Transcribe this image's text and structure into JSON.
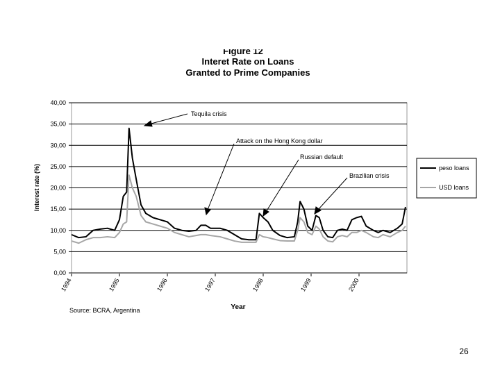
{
  "chart_data": {
    "type": "line",
    "figure_label": "Figure 12",
    "title": "Interet Rate on Loans",
    "subtitle": "Granted to Prime Companies",
    "xlabel": "Year",
    "ylabel": "Interest rate (%)",
    "source": "Source: BCRA, Argentina",
    "annotations": [
      "Tequila crisis",
      "Attack on the Hong Kong dollar",
      "Russian default",
      "Brazilian crisis"
    ],
    "x": [
      1994.0,
      1994.15,
      1994.3,
      1994.45,
      1994.6,
      1994.75,
      1994.9,
      1995.0,
      1995.08,
      1995.15,
      1995.2,
      1995.27,
      1995.35,
      1995.45,
      1995.55,
      1995.7,
      1995.85,
      1996.0,
      1996.15,
      1996.3,
      1996.45,
      1996.6,
      1996.7,
      1996.8,
      1996.9,
      1997.1,
      1997.25,
      1997.4,
      1997.55,
      1997.7,
      1997.85,
      1997.92,
      1998.0,
      1998.1,
      1998.2,
      1998.35,
      1998.5,
      1998.65,
      1998.72,
      1998.77,
      1998.85,
      1998.93,
      1999.02,
      1999.1,
      1999.17,
      1999.25,
      1999.35,
      1999.45,
      1999.55,
      1999.65,
      1999.75,
      1999.85,
      1999.95,
      2000.05,
      2000.15,
      2000.3,
      2000.4,
      2000.5,
      2000.65,
      2000.8,
      2000.9,
      2000.97
    ],
    "series": [
      {
        "name": "peso loans",
        "color": "#000000",
        "values": [
          9,
          8.3,
          8.5,
          10,
          10.3,
          10.5,
          10,
          12.5,
          18,
          19,
          34,
          27,
          22,
          16,
          14,
          13,
          12.5,
          12,
          10.5,
          10,
          9.8,
          10,
          11.2,
          11.2,
          10.5,
          10.5,
          10,
          9,
          8,
          7.8,
          7.8,
          14,
          13,
          12,
          10,
          8.8,
          8.3,
          8.5,
          12,
          16.8,
          15,
          11,
          10,
          13.5,
          13,
          10,
          8.5,
          8.3,
          10,
          10.3,
          10,
          12.5,
          13,
          13.3,
          11,
          10,
          9.5,
          10,
          9.5,
          10.5,
          11.5,
          15.5
        ]
      },
      {
        "name": "USD loans",
        "color": "#a6a6a6",
        "values": [
          7.5,
          7,
          7.8,
          8.3,
          8.3,
          8.5,
          8.3,
          9.5,
          11.5,
          12,
          23,
          20,
          18,
          13.5,
          12,
          11.5,
          11,
          10.5,
          9.5,
          9,
          8.5,
          8.8,
          9,
          9,
          8.8,
          8.5,
          8,
          7.5,
          7.2,
          7.2,
          7.2,
          9,
          8.5,
          8.3,
          8,
          7.6,
          7.5,
          7.5,
          10,
          13,
          12,
          9.5,
          9,
          11,
          10.3,
          8.5,
          7.5,
          7.3,
          8.5,
          8.8,
          8.5,
          9.5,
          9.5,
          10,
          9.5,
          8.5,
          8.3,
          9,
          8.5,
          9.5,
          10,
          11
        ]
      }
    ],
    "xlim": [
      1994,
      2001
    ],
    "xticks": [
      1994,
      1995,
      1996,
      1997,
      1998,
      1999,
      2000
    ],
    "ylim": [
      0,
      40
    ],
    "yticks": [
      {
        "value": 0,
        "label": "0,00"
      },
      {
        "value": 5,
        "label": "5,00"
      },
      {
        "value": 10,
        "label": "10,00"
      },
      {
        "value": 15,
        "label": "15,00"
      },
      {
        "value": 20,
        "label": "20,00"
      },
      {
        "value": 25,
        "label": "25,00"
      },
      {
        "value": 30,
        "label": "30,00"
      },
      {
        "value": 35,
        "label": "35,00"
      },
      {
        "value": 40,
        "label": "40,00"
      }
    ],
    "grid": true,
    "legend": "right"
  },
  "slide": {
    "page_number": "26"
  }
}
